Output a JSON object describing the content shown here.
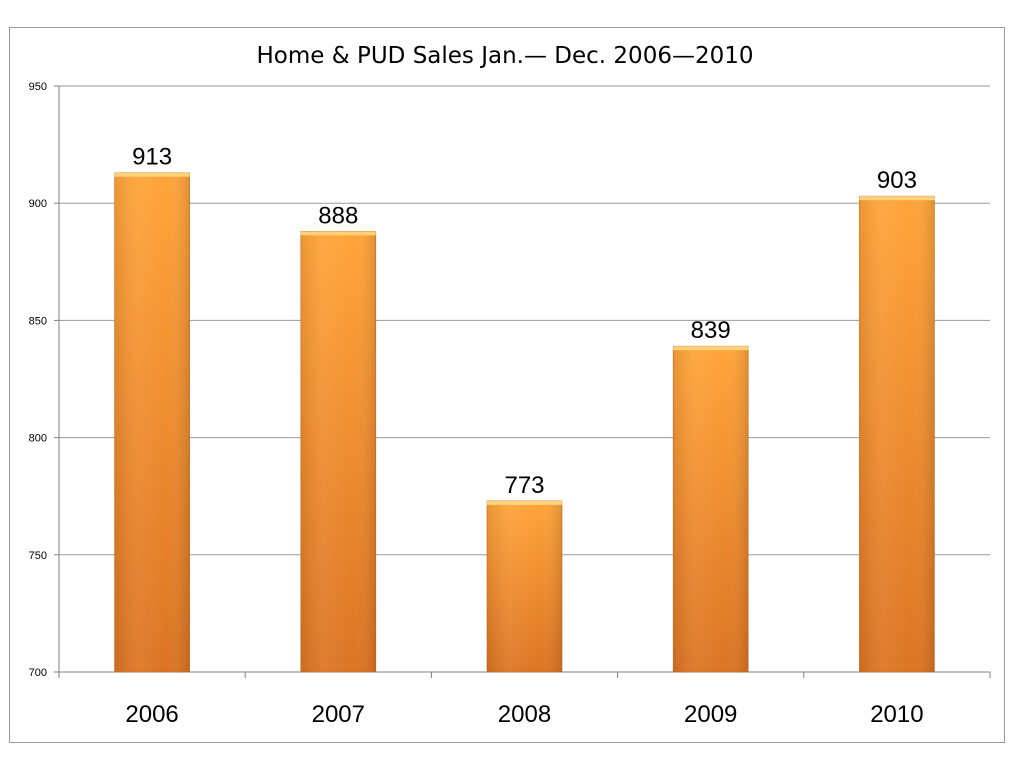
{
  "chart_data": {
    "type": "bar",
    "title": "Home & PUD Sales Jan.— Dec. 2006—2010",
    "xlabel": "",
    "ylabel": "",
    "categories": [
      "2006",
      "2007",
      "2008",
      "2009",
      "2010"
    ],
    "values": [
      913,
      888,
      773,
      839,
      903
    ],
    "data_labels": [
      "913",
      "888",
      "773",
      "839",
      "903"
    ],
    "ylim": [
      700,
      950
    ],
    "yticks": [
      700,
      750,
      800,
      850,
      900,
      950
    ],
    "ytick_labels": [
      "700",
      "750",
      "800",
      "850",
      "900",
      "950"
    ],
    "grid": "horizontal",
    "legend": "none",
    "colors": {
      "bar_top": "#ffa43a",
      "bar_bottom": "#dc7423",
      "bar_cap": "#ffd27a",
      "bar_edge": "#c96a1e",
      "grid": "#9a9a9a",
      "axis": "#808080"
    }
  }
}
